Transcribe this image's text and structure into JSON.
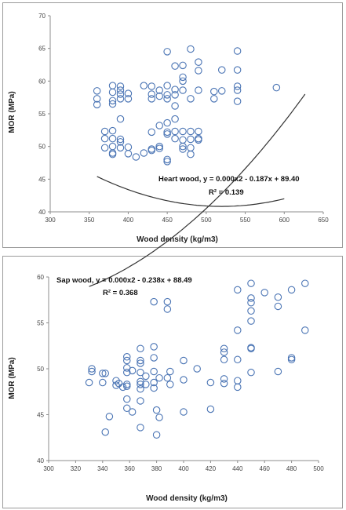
{
  "chart_data": [
    {
      "type": "scatter",
      "xlabel": "Wood density (kg/m3)",
      "ylabel": "MOR (MPa)",
      "xlim": [
        300,
        650
      ],
      "ylim": [
        40,
        70
      ],
      "xticks": [
        300,
        350,
        400,
        450,
        500,
        550,
        600,
        650
      ],
      "yticks": [
        40,
        45,
        50,
        55,
        60,
        65,
        70
      ],
      "grid": false,
      "marker_color": "#4a74b4",
      "trend_color": "#333333",
      "annotation": {
        "equation": "Heart wood, y = 0.000x2 - 0.187x + 89.40",
        "r2": "R² = 0.139"
      },
      "trendline": {
        "coeffs": [
          0.00018,
          -0.187,
          89.4
        ],
        "x_range": [
          360,
          600
        ]
      },
      "points": [
        [
          360,
          58.5
        ],
        [
          360,
          57.3
        ],
        [
          360,
          56.4
        ],
        [
          370,
          52.3
        ],
        [
          370,
          51.2
        ],
        [
          370,
          49.8
        ],
        [
          380,
          59.3
        ],
        [
          380,
          58.3
        ],
        [
          380,
          57.0
        ],
        [
          380,
          56.5
        ],
        [
          380,
          52.4
        ],
        [
          380,
          51.2
        ],
        [
          380,
          50.0
        ],
        [
          380,
          49.0
        ],
        [
          380,
          48.8
        ],
        [
          390,
          59.2
        ],
        [
          390,
          58.6
        ],
        [
          390,
          58.0
        ],
        [
          390,
          57.3
        ],
        [
          390,
          54.2
        ],
        [
          390,
          51.1
        ],
        [
          390,
          50.7
        ],
        [
          390,
          49.8
        ],
        [
          400,
          58.1
        ],
        [
          400,
          57.3
        ],
        [
          400,
          49.9
        ],
        [
          400,
          48.9
        ],
        [
          410,
          48.4
        ],
        [
          420,
          59.3
        ],
        [
          420,
          49.0
        ],
        [
          430,
          59.2
        ],
        [
          430,
          58.0
        ],
        [
          430,
          57.3
        ],
        [
          430,
          52.2
        ],
        [
          430,
          49.6
        ],
        [
          430,
          49.4
        ],
        [
          440,
          58.6
        ],
        [
          440,
          57.7
        ],
        [
          440,
          53.2
        ],
        [
          440,
          50.0
        ],
        [
          440,
          49.7
        ],
        [
          450,
          64.5
        ],
        [
          450,
          59.3
        ],
        [
          450,
          57.9
        ],
        [
          450,
          57.3
        ],
        [
          450,
          53.6
        ],
        [
          450,
          52.2
        ],
        [
          450,
          51.9
        ],
        [
          450,
          48.0
        ],
        [
          450,
          47.7
        ],
        [
          460,
          62.3
        ],
        [
          460,
          58.7
        ],
        [
          460,
          57.9
        ],
        [
          460,
          56.2
        ],
        [
          460,
          54.2
        ],
        [
          460,
          52.3
        ],
        [
          460,
          51.2
        ],
        [
          470,
          62.4
        ],
        [
          470,
          60.6
        ],
        [
          470,
          60.0
        ],
        [
          470,
          58.6
        ],
        [
          470,
          52.3
        ],
        [
          470,
          51.0
        ],
        [
          470,
          50.0
        ],
        [
          470,
          49.6
        ],
        [
          480,
          64.9
        ],
        [
          480,
          57.3
        ],
        [
          480,
          52.3
        ],
        [
          480,
          51.1
        ],
        [
          480,
          49.8
        ],
        [
          480,
          48.8
        ],
        [
          490,
          62.9
        ],
        [
          490,
          61.6
        ],
        [
          490,
          58.6
        ],
        [
          490,
          52.3
        ],
        [
          490,
          51.2
        ],
        [
          490,
          51.0
        ],
        [
          510,
          58.4
        ],
        [
          510,
          57.3
        ],
        [
          520,
          61.7
        ],
        [
          520,
          58.5
        ],
        [
          540,
          64.6
        ],
        [
          540,
          61.7
        ],
        [
          540,
          59.2
        ],
        [
          540,
          58.6
        ],
        [
          540,
          56.9
        ],
        [
          590,
          59.0
        ]
      ]
    },
    {
      "type": "scatter",
      "xlabel": "Wood density (kg/m3)",
      "ylabel": "MOR (MPa)",
      "xlim": [
        300,
        500
      ],
      "ylim": [
        40,
        60
      ],
      "xticks": [
        300,
        320,
        340,
        360,
        380,
        400,
        420,
        440,
        460,
        480,
        500
      ],
      "yticks": [
        40,
        45,
        50,
        55,
        60
      ],
      "grid": false,
      "marker_color": "#4a74b4",
      "trend_color": "#333333",
      "annotation": {
        "equation": "Sap wood, y = 0.000x2 - 0.238x + 88.49",
        "r2": "R² = 0.368"
      },
      "trendline": {
        "coeffs": [
          0.00045,
          -0.238,
          88.49
        ],
        "x_range": [
          330,
          490
        ]
      },
      "points": [
        [
          330,
          48.5
        ],
        [
          332,
          49.7
        ],
        [
          332,
          50.0
        ],
        [
          340,
          49.5
        ],
        [
          340,
          48.5
        ],
        [
          342,
          49.5
        ],
        [
          342,
          43.1
        ],
        [
          345,
          44.8
        ],
        [
          350,
          48.2
        ],
        [
          350,
          48.7
        ],
        [
          352,
          48.4
        ],
        [
          355,
          48.0
        ],
        [
          358,
          50.9
        ],
        [
          358,
          51.3
        ],
        [
          358,
          50.1
        ],
        [
          358,
          49.6
        ],
        [
          358,
          48.3
        ],
        [
          358,
          48.1
        ],
        [
          358,
          46.7
        ],
        [
          358,
          45.7
        ],
        [
          362,
          49.8
        ],
        [
          362,
          45.3
        ],
        [
          368,
          52.2
        ],
        [
          368,
          50.9
        ],
        [
          368,
          50.6
        ],
        [
          368,
          49.6
        ],
        [
          368,
          48.6
        ],
        [
          368,
          48.3
        ],
        [
          368,
          47.8
        ],
        [
          368,
          46.5
        ],
        [
          368,
          43.6
        ],
        [
          372,
          49.2
        ],
        [
          372,
          48.3
        ],
        [
          378,
          57.3
        ],
        [
          378,
          52.4
        ],
        [
          378,
          51.2
        ],
        [
          378,
          49.7
        ],
        [
          378,
          48.5
        ],
        [
          378,
          47.9
        ],
        [
          380,
          45.5
        ],
        [
          380,
          42.8
        ],
        [
          382,
          44.7
        ],
        [
          382,
          49.0
        ],
        [
          388,
          57.3
        ],
        [
          388,
          56.5
        ],
        [
          388,
          49.0
        ],
        [
          390,
          48.3
        ],
        [
          390,
          49.7
        ],
        [
          400,
          50.9
        ],
        [
          400,
          48.8
        ],
        [
          400,
          45.3
        ],
        [
          410,
          50.0
        ],
        [
          420,
          48.5
        ],
        [
          420,
          45.6
        ],
        [
          430,
          52.2
        ],
        [
          430,
          51.8
        ],
        [
          430,
          51.0
        ],
        [
          430,
          48.9
        ],
        [
          430,
          48.4
        ],
        [
          440,
          58.6
        ],
        [
          440,
          54.2
        ],
        [
          440,
          51.0
        ],
        [
          440,
          48.7
        ],
        [
          440,
          48.0
        ],
        [
          450,
          59.3
        ],
        [
          450,
          57.7
        ],
        [
          450,
          57.2
        ],
        [
          450,
          56.3
        ],
        [
          450,
          55.2
        ],
        [
          450,
          52.3
        ],
        [
          450,
          52.2
        ],
        [
          450,
          49.6
        ],
        [
          460,
          58.3
        ],
        [
          470,
          57.8
        ],
        [
          470,
          56.8
        ],
        [
          470,
          49.7
        ],
        [
          480,
          58.6
        ],
        [
          480,
          51.2
        ],
        [
          480,
          51.0
        ],
        [
          490,
          59.3
        ],
        [
          490,
          54.2
        ]
      ]
    }
  ]
}
